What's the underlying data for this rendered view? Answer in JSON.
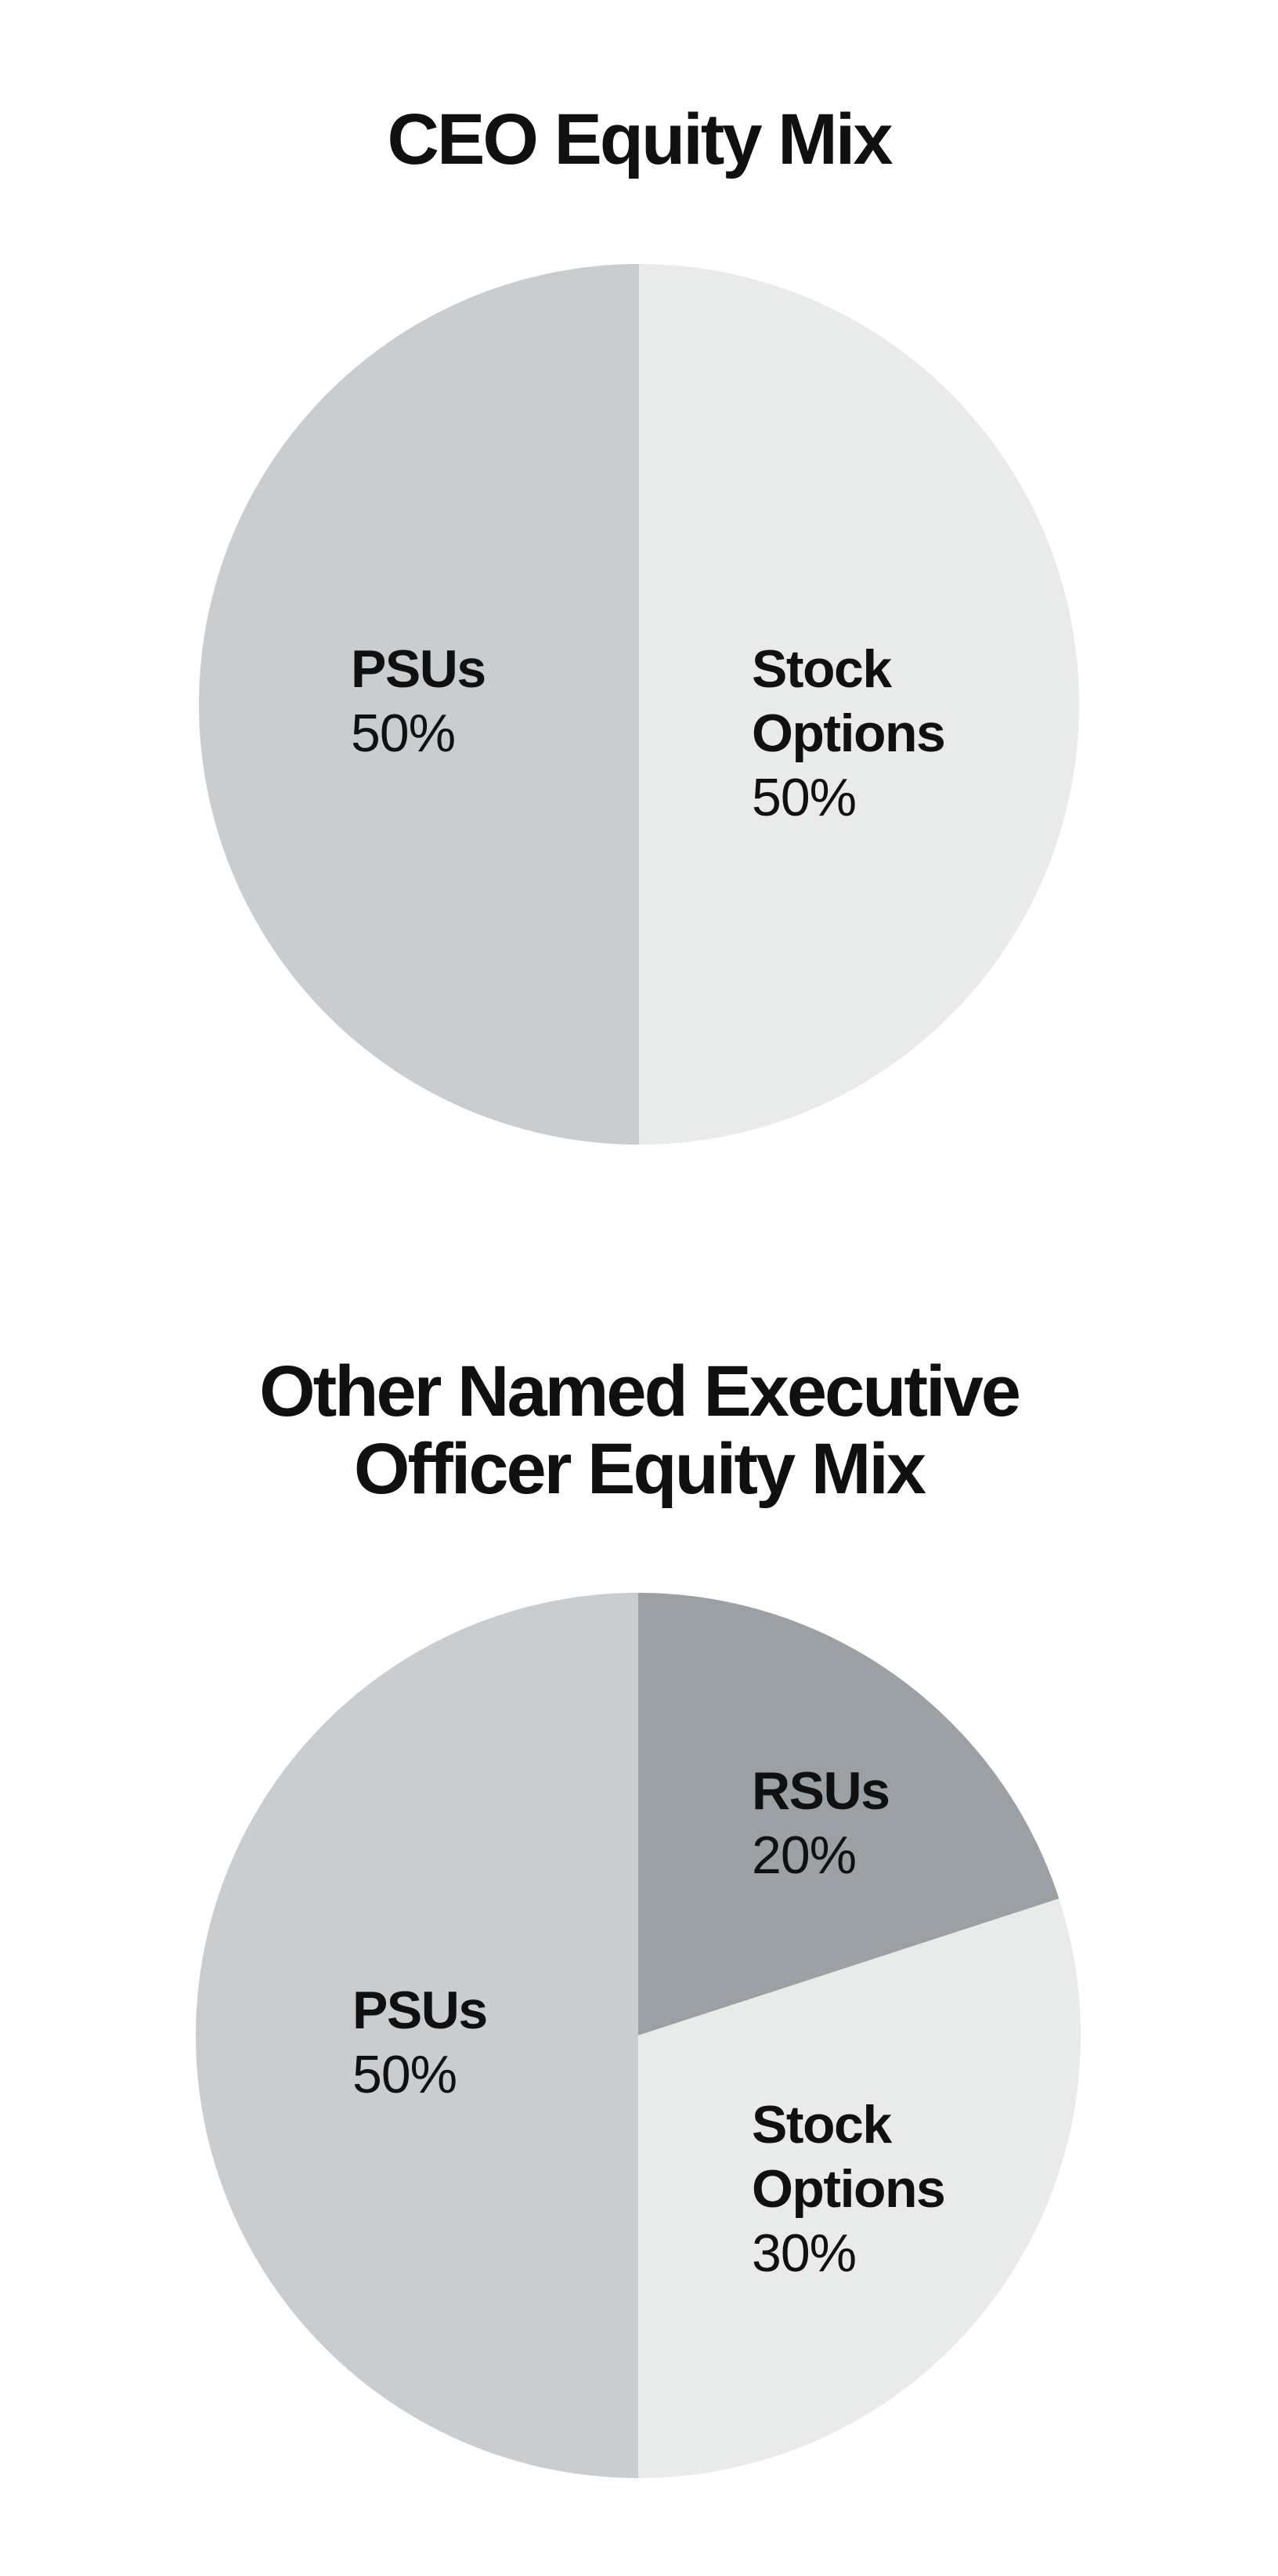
{
  "page": {
    "background": "#ffffff",
    "text_color": "#101010"
  },
  "chart_data": [
    {
      "type": "pie",
      "title": "CEO Equity Mix",
      "title_lines": [
        "CEO Equity Mix"
      ],
      "unit": "percent",
      "start_angle": "12-o-clock",
      "direction": "clockwise",
      "legend": "none",
      "labels_inside_slices": true,
      "slices": [
        {
          "name": "Stock Options",
          "value": 50,
          "value_label": "50%",
          "color": "#e9eaea",
          "label_lines": [
            "Stock",
            "Options"
          ]
        },
        {
          "name": "PSUs",
          "value": 50,
          "value_label": "50%",
          "color": "#cacdcf",
          "label_lines": [
            "PSUs"
          ]
        }
      ]
    },
    {
      "type": "pie",
      "title": "Other Named Executive Officer Equity Mix",
      "title_lines": [
        "Other Named Executive",
        "Officer Equity Mix"
      ],
      "unit": "percent",
      "start_angle": "12-o-clock",
      "direction": "clockwise",
      "legend": "none",
      "labels_inside_slices": true,
      "slices": [
        {
          "name": "RSUs",
          "value": 20,
          "value_label": "20%",
          "color": "#9aa0a4",
          "label_lines": [
            "RSUs"
          ]
        },
        {
          "name": "Stock Options",
          "value": 30,
          "value_label": "30%",
          "color": "#e9eaea",
          "label_lines": [
            "Stock",
            "Options"
          ]
        },
        {
          "name": "PSUs",
          "value": 50,
          "value_label": "50%",
          "color": "#cacdcf",
          "label_lines": [
            "PSUs"
          ]
        }
      ]
    }
  ]
}
